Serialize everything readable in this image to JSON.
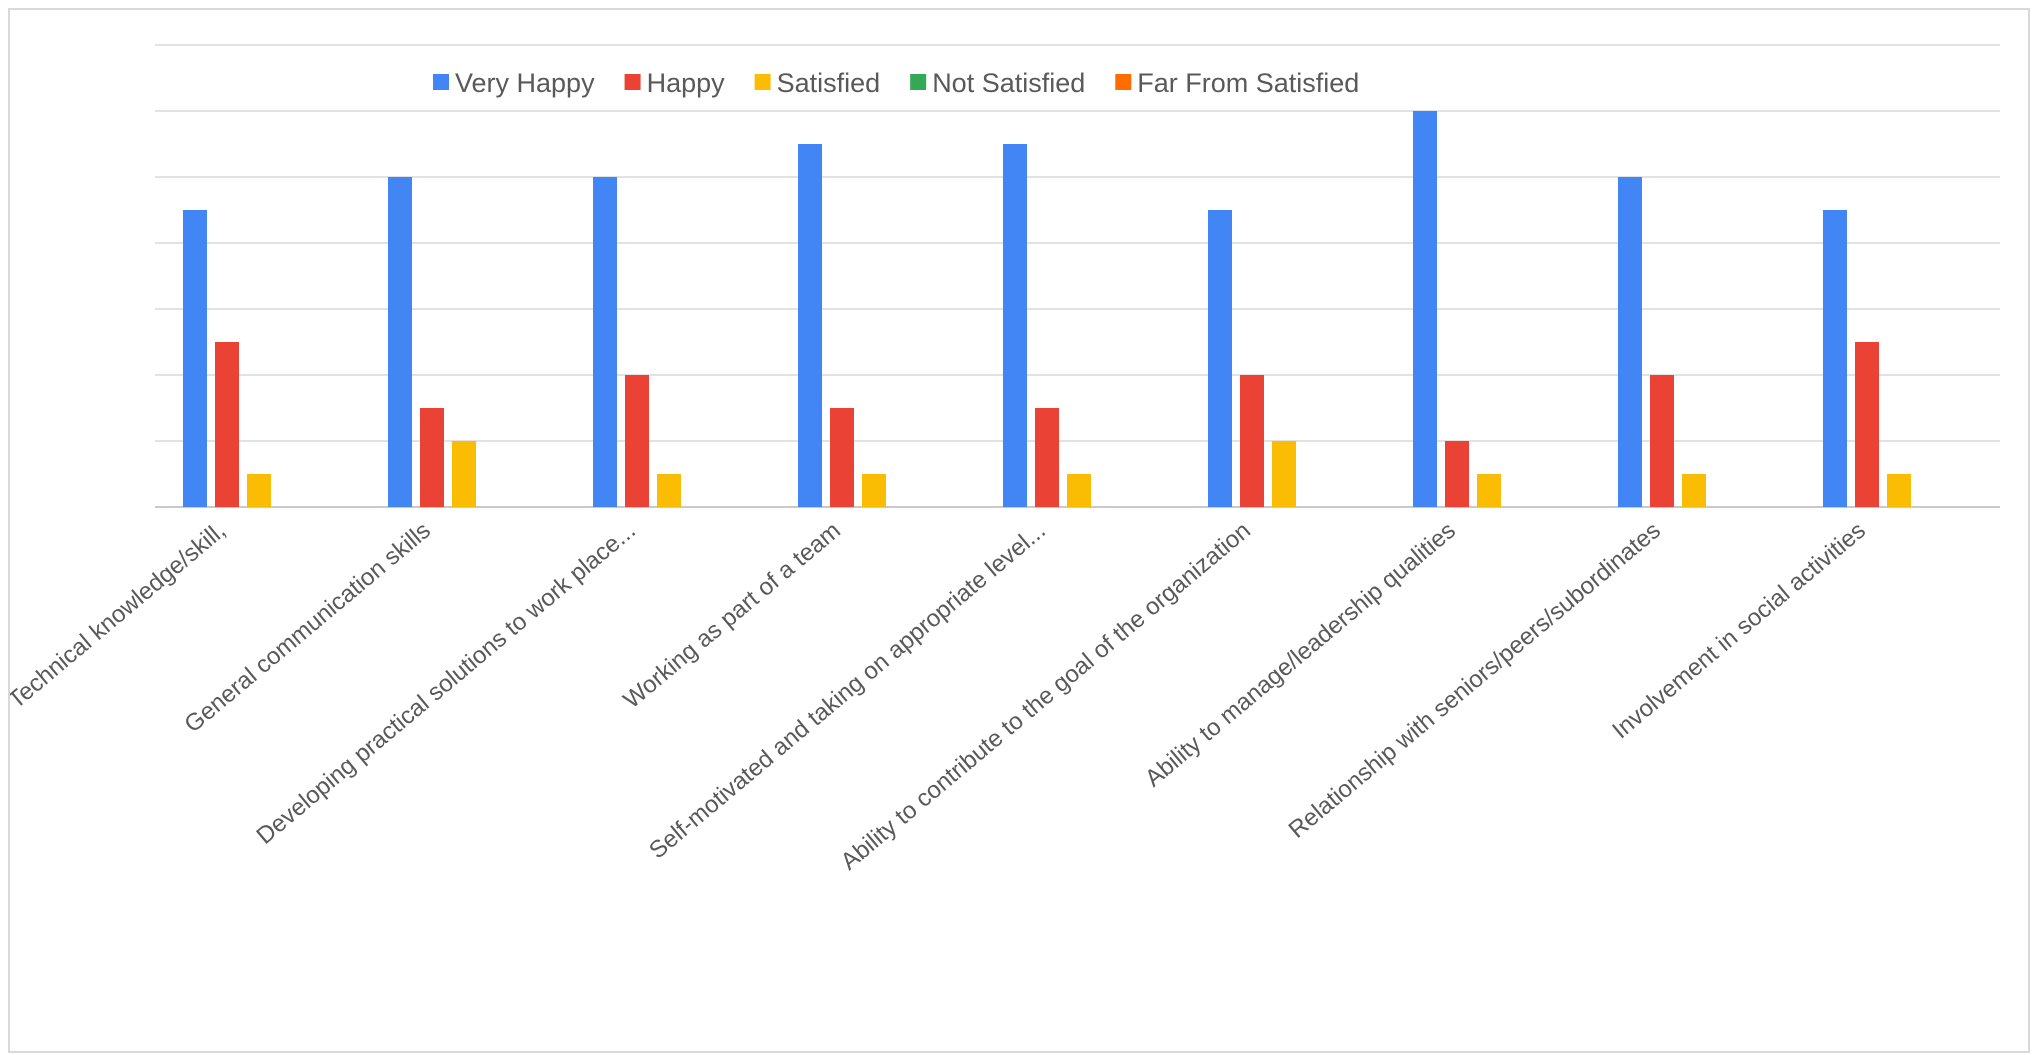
{
  "chart_data": {
    "type": "bar",
    "title": "",
    "xlabel": "",
    "ylabel": "",
    "ylim": [
      0,
      12
    ],
    "grid": true,
    "legend_position": "top",
    "categories": [
      "Technical knowledge/skill,",
      "General communication skills",
      "Developing practical solutions to work place...",
      "Working as part of a team",
      "Self-motivated and taking on appropriate level...",
      "Ability to contribute to the goal of the organization",
      "Ability to manage/leadership qualities",
      "Relationship with seniors/peers/subordinates",
      "Involvement in social activities"
    ],
    "series": [
      {
        "name": "Very Happy",
        "color": "#4285F4",
        "values": [
          9,
          10,
          10,
          11,
          11,
          9,
          12,
          10,
          9
        ]
      },
      {
        "name": "Happy",
        "color": "#EA4335",
        "values": [
          5,
          3,
          4,
          3,
          3,
          4,
          2,
          4,
          5
        ]
      },
      {
        "name": "Satisfied",
        "color": "#FBBC04",
        "values": [
          1,
          2,
          1,
          1,
          1,
          2,
          1,
          1,
          1
        ]
      },
      {
        "name": "Not Satisfied",
        "color": "#34A853",
        "values": [
          0,
          0,
          0,
          0,
          0,
          0,
          0,
          0,
          0
        ]
      },
      {
        "name": "Far From Satisfied",
        "color": "#FF6D01",
        "values": [
          0,
          0,
          0,
          0,
          0,
          0,
          0,
          0,
          0
        ]
      }
    ]
  }
}
